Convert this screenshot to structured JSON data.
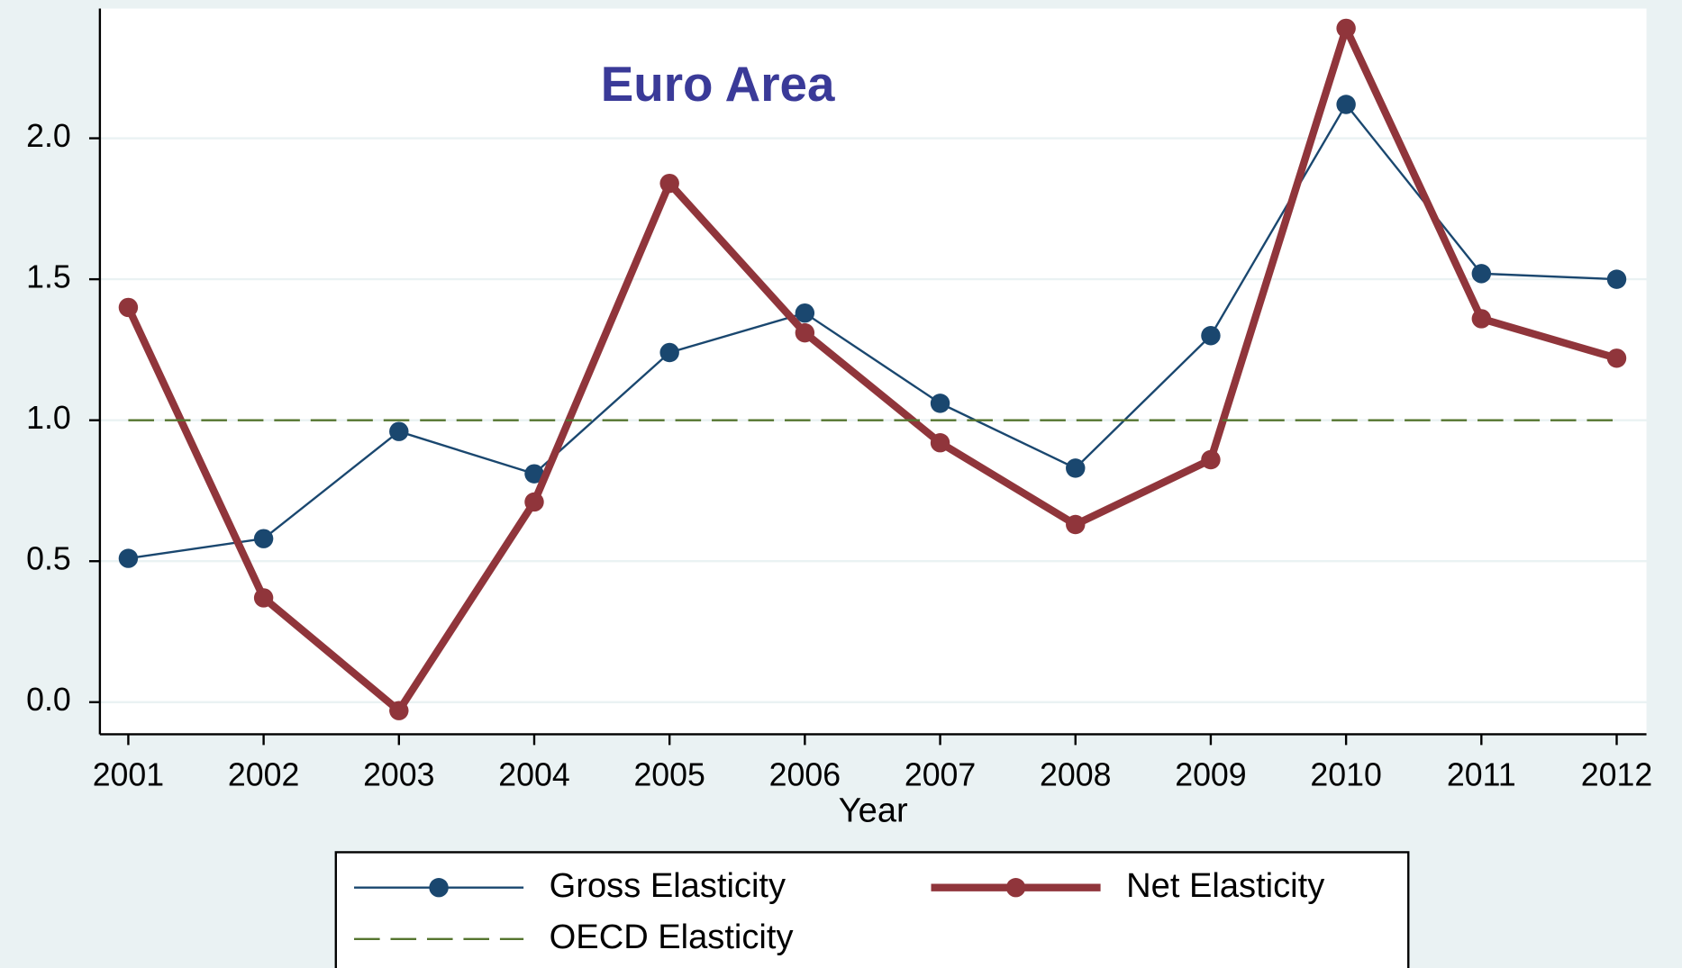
{
  "chart_data": {
    "type": "line",
    "title": "Euro Area",
    "x_label": "Year",
    "x": [
      2001,
      2002,
      2003,
      2004,
      2005,
      2006,
      2007,
      2008,
      2009,
      2010,
      2011,
      2012
    ],
    "series": [
      {
        "name": "Gross Elasticity",
        "color": "#1a476f",
        "width": 2,
        "marker": true,
        "dashed": false,
        "values": [
          0.51,
          0.58,
          0.96,
          0.81,
          1.24,
          1.38,
          1.06,
          0.83,
          1.3,
          2.12,
          1.52,
          1.5
        ]
      },
      {
        "name": "Net Elasticity",
        "color": "#90353b",
        "width": 7,
        "marker": true,
        "dashed": false,
        "values": [
          1.4,
          0.37,
          -0.03,
          0.71,
          1.84,
          1.31,
          0.92,
          0.63,
          0.86,
          2.39,
          1.36,
          1.22
        ]
      },
      {
        "name": "OECD Elasticity",
        "color": "#55752f",
        "width": 2,
        "marker": false,
        "dashed": true,
        "values": [
          1.0,
          1.0,
          1.0,
          1.0,
          1.0,
          1.0,
          1.0,
          1.0,
          1.0,
          1.0,
          1.0,
          1.0
        ]
      }
    ],
    "xlim": [
      2000.79,
      2012.22
    ],
    "xticks": [
      2001,
      2002,
      2003,
      2004,
      2005,
      2006,
      2007,
      2008,
      2009,
      2010,
      2011,
      2012
    ],
    "ylim": [
      -0.114,
      2.46
    ],
    "yticks": [
      {
        "value": 0,
        "label": "0.0"
      },
      0.5,
      {
        "value": 1,
        "label": "1.0"
      },
      1.5,
      {
        "value": 2,
        "label": "2.0"
      }
    ],
    "grid": true
  }
}
